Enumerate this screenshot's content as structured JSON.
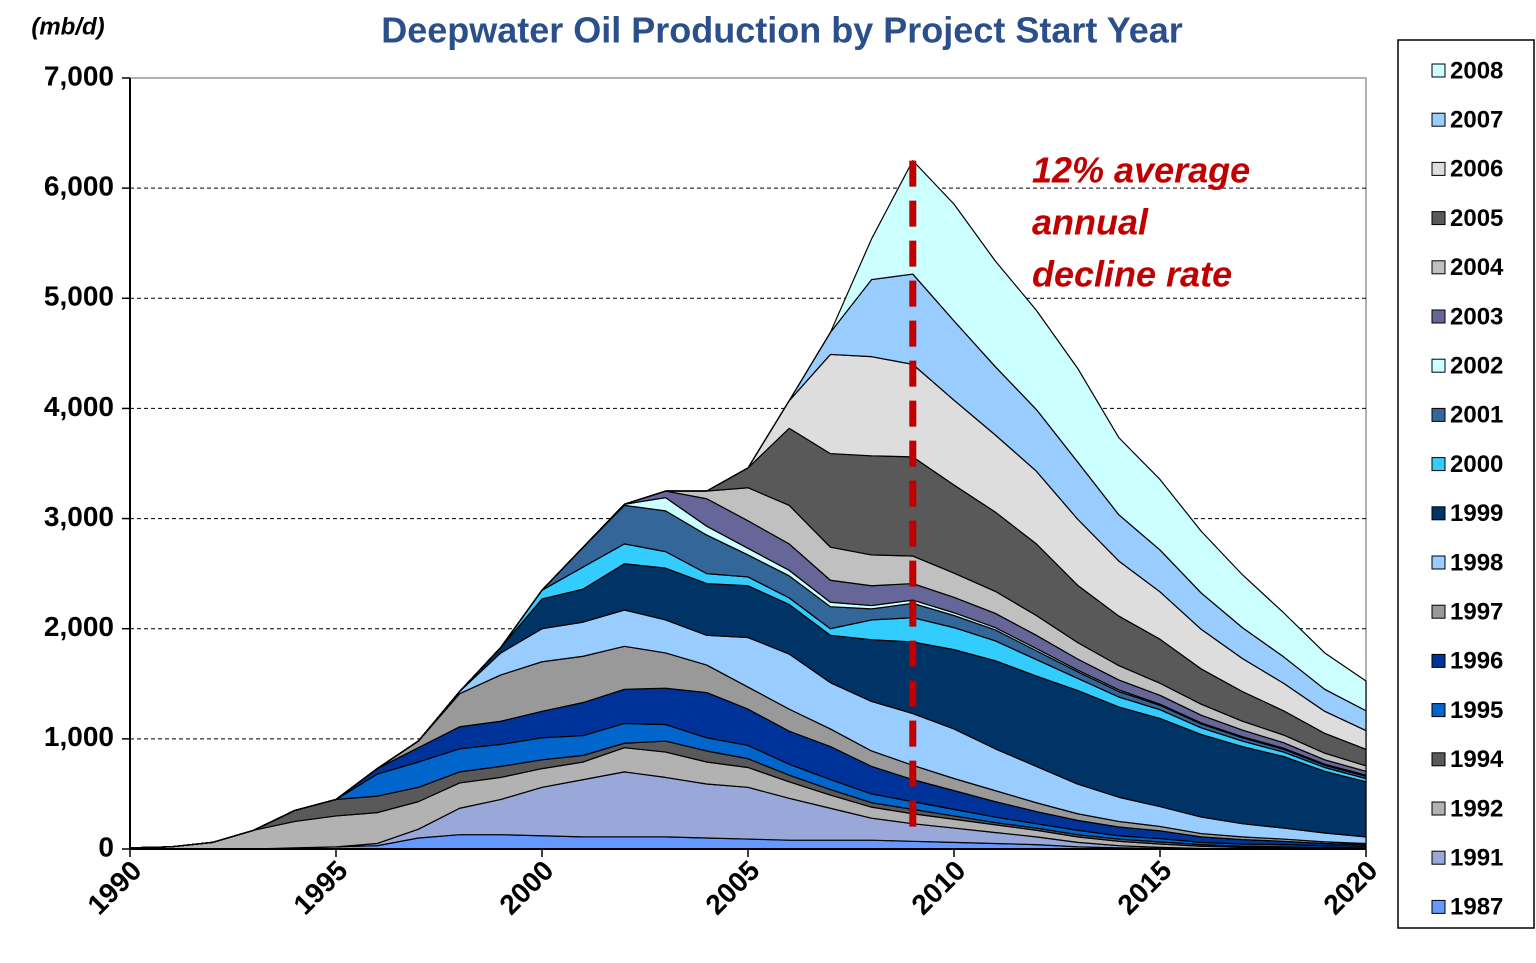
{
  "chart_data": {
    "type": "stacked_area",
    "title": "Deepwater Oil Production by Project Start Year",
    "y_label": "(mb/d)",
    "annotation": [
      "12%  average",
      "annual",
      "decline rate"
    ],
    "reference_line": {
      "x": 2009,
      "color": "#c00000"
    },
    "x": [
      1990,
      1991,
      1992,
      1993,
      1994,
      1995,
      1996,
      1997,
      1998,
      1999,
      2000,
      2001,
      2002,
      2003,
      2004,
      2005,
      2006,
      2007,
      2008,
      2009,
      2010,
      2011,
      2012,
      2013,
      2014,
      2015,
      2016,
      2017,
      2018,
      2019,
      2020
    ],
    "xlim": [
      1990,
      2020
    ],
    "xticks": [
      1990,
      1995,
      2000,
      2005,
      2010,
      2015,
      2020
    ],
    "ylim": [
      0,
      7000
    ],
    "yticks": [
      0,
      {
        "value": 1000,
        "label": "1,000"
      },
      {
        "value": 2000,
        "label": "2,000"
      },
      {
        "value": 3000,
        "label": "3,000"
      },
      {
        "value": 4000,
        "label": "4,000"
      },
      {
        "value": 5000,
        "label": "5,000"
      },
      {
        "value": 6000,
        "label": "6,000"
      },
      {
        "value": 7000,
        "label": "7,000"
      }
    ],
    "grid": true,
    "series": [
      {
        "name": "1987",
        "color": "#6699ff",
        "values": [
          0,
          0,
          0,
          0,
          10,
          20,
          30,
          100,
          130,
          130,
          120,
          110,
          110,
          110,
          100,
          90,
          80,
          80,
          80,
          70,
          60,
          50,
          40,
          20,
          10,
          5,
          0,
          0,
          0,
          0,
          0
        ]
      },
      {
        "name": "1991",
        "color": "#99a8d8",
        "values": [
          0,
          0,
          0,
          0,
          0,
          0,
          20,
          80,
          240,
          320,
          440,
          520,
          590,
          540,
          490,
          470,
          380,
          290,
          200,
          160,
          130,
          100,
          70,
          40,
          20,
          10,
          5,
          0,
          0,
          0,
          0
        ]
      },
      {
        "name": "1992",
        "color": "#b2b2b2",
        "values": [
          10,
          20,
          60,
          170,
          240,
          280,
          280,
          250,
          230,
          200,
          170,
          160,
          220,
          230,
          200,
          180,
          150,
          120,
          100,
          90,
          80,
          70,
          60,
          50,
          40,
          30,
          20,
          15,
          10,
          5,
          0
        ]
      },
      {
        "name": "1994",
        "color": "#595959",
        "values": [
          0,
          0,
          0,
          0,
          100,
          150,
          150,
          130,
          100,
          100,
          80,
          60,
          40,
          100,
          100,
          80,
          60,
          50,
          40,
          40,
          30,
          20,
          20,
          20,
          20,
          20,
          15,
          10,
          10,
          10,
          10
        ]
      },
      {
        "name": "1995",
        "color": "#0066cc",
        "values": [
          0,
          0,
          0,
          0,
          0,
          0,
          200,
          230,
          210,
          200,
          200,
          180,
          180,
          150,
          120,
          120,
          100,
          90,
          80,
          70,
          60,
          50,
          40,
          40,
          30,
          30,
          20,
          20,
          20,
          15,
          15
        ]
      },
      {
        "name": "1996",
        "color": "#003399",
        "values": [
          0,
          0,
          0,
          0,
          0,
          0,
          50,
          130,
          200,
          210,
          240,
          300,
          310,
          330,
          410,
          330,
          300,
          300,
          250,
          200,
          170,
          140,
          110,
          90,
          80,
          70,
          50,
          40,
          30,
          20,
          15
        ]
      },
      {
        "name": "1997",
        "color": "#999999",
        "values": [
          0,
          0,
          0,
          0,
          0,
          0,
          0,
          60,
          300,
          420,
          450,
          420,
          390,
          320,
          250,
          200,
          200,
          160,
          140,
          130,
          110,
          100,
          80,
          60,
          50,
          40,
          30,
          25,
          20,
          15,
          10
        ]
      },
      {
        "name": "1998",
        "color": "#99ccff",
        "values": [
          0,
          0,
          0,
          0,
          0,
          0,
          0,
          0,
          20,
          200,
          300,
          310,
          330,
          300,
          270,
          450,
          500,
          420,
          450,
          470,
          450,
          380,
          330,
          270,
          220,
          180,
          150,
          120,
          100,
          80,
          60
        ]
      },
      {
        "name": "1999",
        "color": "#003366",
        "values": [
          0,
          0,
          0,
          0,
          0,
          0,
          0,
          0,
          0,
          50,
          270,
          300,
          420,
          470,
          470,
          470,
          450,
          430,
          560,
          650,
          720,
          800,
          820,
          850,
          820,
          800,
          750,
          700,
          650,
          560,
          500
        ]
      },
      {
        "name": "2000",
        "color": "#33ccff",
        "values": [
          0,
          0,
          0,
          0,
          0,
          0,
          0,
          0,
          0,
          0,
          80,
          200,
          180,
          150,
          90,
          80,
          60,
          60,
          180,
          220,
          200,
          180,
          150,
          110,
          90,
          80,
          60,
          50,
          40,
          35,
          30
        ]
      },
      {
        "name": "2001",
        "color": "#336699",
        "values": [
          0,
          0,
          0,
          0,
          0,
          0,
          0,
          0,
          0,
          0,
          0,
          180,
          350,
          370,
          350,
          200,
          200,
          200,
          100,
          130,
          110,
          100,
          80,
          60,
          50,
          40,
          35,
          30,
          25,
          20,
          20
        ]
      },
      {
        "name": "2002",
        "color": "#ccffff",
        "values": [
          0,
          0,
          0,
          0,
          0,
          0,
          0,
          0,
          0,
          0,
          0,
          0,
          10,
          120,
          80,
          60,
          50,
          40,
          30,
          30,
          25,
          20,
          20,
          15,
          15,
          10,
          10,
          10,
          10,
          10,
          10
        ]
      },
      {
        "name": "2003",
        "color": "#666699",
        "values": [
          0,
          0,
          0,
          0,
          0,
          0,
          0,
          0,
          0,
          0,
          0,
          0,
          0,
          60,
          250,
          250,
          240,
          200,
          180,
          150,
          140,
          130,
          120,
          100,
          90,
          80,
          70,
          60,
          50,
          40,
          35
        ]
      },
      {
        "name": "2004",
        "color": "#c0c0c0",
        "values": [
          0,
          0,
          0,
          0,
          0,
          0,
          0,
          0,
          0,
          0,
          0,
          0,
          0,
          0,
          70,
          300,
          350,
          300,
          280,
          250,
          220,
          200,
          180,
          150,
          130,
          110,
          100,
          80,
          70,
          60,
          50
        ]
      },
      {
        "name": "2005",
        "color": "#595959",
        "values": [
          0,
          0,
          0,
          0,
          0,
          0,
          0,
          0,
          0,
          0,
          0,
          0,
          0,
          0,
          0,
          180,
          700,
          850,
          900,
          900,
          800,
          720,
          650,
          520,
          450,
          400,
          320,
          270,
          220,
          180,
          150
        ]
      },
      {
        "name": "2006",
        "color": "#dddddd",
        "values": [
          0,
          0,
          0,
          0,
          0,
          0,
          0,
          0,
          0,
          0,
          0,
          0,
          0,
          0,
          0,
          0,
          250,
          900,
          900,
          840,
          770,
          700,
          660,
          600,
          500,
          430,
          360,
          300,
          250,
          200,
          170
        ]
      },
      {
        "name": "2007",
        "color": "#99ccff",
        "values": [
          0,
          0,
          0,
          0,
          0,
          0,
          0,
          0,
          0,
          0,
          0,
          0,
          0,
          0,
          0,
          0,
          0,
          200,
          700,
          820,
          720,
          620,
          560,
          520,
          420,
          380,
          330,
          280,
          240,
          200,
          180
        ]
      },
      {
        "name": "2008",
        "color": "#ccffff",
        "values": [
          0,
          0,
          0,
          0,
          0,
          0,
          0,
          0,
          0,
          0,
          0,
          0,
          0,
          0,
          0,
          0,
          0,
          0,
          370,
          1030,
          1060,
          960,
          900,
          850,
          700,
          640,
          560,
          480,
          400,
          330,
          270
        ]
      }
    ]
  }
}
